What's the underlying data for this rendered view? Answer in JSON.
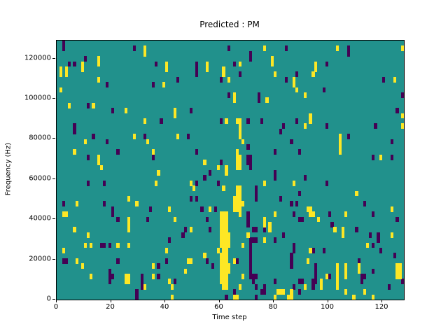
{
  "chart_data": {
    "type": "heatmap",
    "title": "Predicted : PM",
    "xlabel": "Time step",
    "ylabel": "Frequency (Hz)",
    "xlim": [
      0,
      128
    ],
    "ylim": [
      0,
      128900
    ],
    "xticks": [
      0,
      20,
      40,
      60,
      80,
      100,
      120
    ],
    "xtick_labels": [
      "0",
      "20",
      "40",
      "60",
      "80",
      "100",
      "120"
    ],
    "yticks": [
      0,
      20000,
      40000,
      60000,
      80000,
      100000,
      120000
    ],
    "ytick_labels": [
      "0",
      "20000",
      "40000",
      "60000",
      "80000",
      "100000",
      "120000"
    ],
    "grid": {
      "cols": 128,
      "rows": 50
    },
    "legend": "none",
    "colors": {
      "background": "#21918c",
      "yellow": "#fde725",
      "dark": "#440154",
      "axis": "#000000"
    },
    "yellow_cells": [
      [
        32,
        48
      ],
      [
        32,
        47
      ],
      [
        76,
        48
      ],
      [
        103,
        48
      ],
      [
        127,
        48
      ],
      [
        15,
        46
      ],
      [
        15,
        45
      ],
      [
        9,
        45
      ],
      [
        9,
        44
      ],
      [
        40,
        45
      ],
      [
        40,
        44
      ],
      [
        1,
        44
      ],
      [
        1,
        43
      ],
      [
        3,
        44
      ],
      [
        3,
        43
      ],
      [
        79,
        46
      ],
      [
        79,
        45
      ],
      [
        55,
        45
      ],
      [
        55,
        44
      ],
      [
        67,
        45
      ],
      [
        61,
        44
      ],
      [
        61,
        43
      ],
      [
        95,
        45
      ],
      [
        95,
        44
      ],
      [
        94,
        43
      ],
      [
        80,
        43
      ],
      [
        15,
        42
      ],
      [
        39,
        41
      ],
      [
        1,
        40
      ],
      [
        63,
        42
      ],
      [
        87,
        42
      ],
      [
        87,
        41
      ],
      [
        124,
        42
      ],
      [
        88,
        40
      ],
      [
        91,
        39
      ],
      [
        65,
        39
      ],
      [
        65,
        38
      ],
      [
        77,
        38
      ],
      [
        4,
        37
      ],
      [
        13,
        37
      ],
      [
        25,
        36
      ],
      [
        32,
        34
      ],
      [
        43,
        36
      ],
      [
        43,
        35
      ],
      [
        127,
        35
      ],
      [
        62,
        34
      ],
      [
        66,
        34
      ],
      [
        67,
        34
      ],
      [
        93,
        35
      ],
      [
        93,
        34
      ],
      [
        91,
        33
      ],
      [
        127,
        33
      ],
      [
        67,
        33
      ],
      [
        67,
        32
      ],
      [
        67,
        31
      ],
      [
        28,
        31
      ],
      [
        44,
        31
      ],
      [
        104,
        31
      ],
      [
        104,
        30
      ],
      [
        104,
        29
      ],
      [
        104,
        28
      ],
      [
        10,
        30
      ],
      [
        33,
        30
      ],
      [
        68,
        30
      ],
      [
        6,
        28
      ],
      [
        35,
        28
      ],
      [
        15,
        27
      ],
      [
        15,
        26
      ],
      [
        16,
        25
      ],
      [
        66,
        28
      ],
      [
        66,
        27
      ],
      [
        67,
        27
      ],
      [
        66,
        26
      ],
      [
        67,
        26
      ],
      [
        66,
        25
      ],
      [
        67,
        25
      ],
      [
        54,
        26
      ],
      [
        59,
        25
      ],
      [
        62,
        25
      ],
      [
        62,
        24
      ],
      [
        119,
        27
      ],
      [
        37,
        24
      ],
      [
        36,
        22
      ],
      [
        76,
        22
      ],
      [
        87,
        22
      ],
      [
        110,
        20
      ],
      [
        49,
        22
      ],
      [
        50,
        21
      ],
      [
        61,
        21
      ],
      [
        66,
        21
      ],
      [
        67,
        21
      ],
      [
        66,
        20
      ],
      [
        67,
        20
      ],
      [
        26,
        19
      ],
      [
        7,
        18
      ],
      [
        29,
        18
      ],
      [
        41,
        17
      ],
      [
        65,
        19
      ],
      [
        66,
        19
      ],
      [
        67,
        19
      ],
      [
        65,
        18
      ],
      [
        66,
        18
      ],
      [
        67,
        18
      ],
      [
        68,
        18
      ],
      [
        65,
        17
      ],
      [
        66,
        17
      ],
      [
        67,
        17
      ],
      [
        56,
        17
      ],
      [
        123,
        17
      ],
      [
        92,
        17
      ],
      [
        93,
        17
      ],
      [
        2,
        16
      ],
      [
        3,
        16
      ],
      [
        26,
        15
      ],
      [
        26,
        14
      ],
      [
        26,
        13
      ],
      [
        6,
        13
      ],
      [
        43,
        15
      ],
      [
        49,
        13
      ],
      [
        67,
        16
      ],
      [
        76,
        15
      ],
      [
        76,
        14
      ],
      [
        78,
        14
      ],
      [
        78,
        13
      ],
      [
        80,
        16
      ],
      [
        93,
        16
      ],
      [
        94,
        16
      ],
      [
        96,
        15
      ],
      [
        102,
        13
      ],
      [
        105,
        13
      ],
      [
        105,
        12
      ],
      [
        106,
        16
      ],
      [
        123,
        12
      ],
      [
        114,
        10
      ],
      [
        76,
        11
      ],
      [
        11,
        12
      ],
      [
        10,
        10
      ],
      [
        12,
        10
      ],
      [
        22,
        10
      ],
      [
        26,
        10
      ],
      [
        2,
        9
      ],
      [
        7,
        7
      ],
      [
        9,
        6
      ],
      [
        12,
        4
      ],
      [
        25,
        4
      ],
      [
        26,
        4
      ],
      [
        25,
        3
      ],
      [
        26,
        3
      ],
      [
        35,
        6
      ],
      [
        35,
        4
      ],
      [
        40,
        9
      ],
      [
        32,
        2
      ],
      [
        41,
        3
      ],
      [
        42,
        2
      ],
      [
        42,
        0
      ],
      [
        59,
        9
      ],
      [
        54,
        8
      ],
      [
        48,
        7
      ],
      [
        49,
        7
      ],
      [
        47,
        5
      ],
      [
        60,
        16
      ],
      [
        61,
        16
      ],
      [
        62,
        16
      ],
      [
        60,
        15
      ],
      [
        61,
        15
      ],
      [
        62,
        15
      ],
      [
        60,
        14
      ],
      [
        61,
        14
      ],
      [
        62,
        14
      ],
      [
        60,
        13
      ],
      [
        61,
        13
      ],
      [
        62,
        13
      ],
      [
        60,
        12
      ],
      [
        61,
        12
      ],
      [
        62,
        12
      ],
      [
        60,
        11
      ],
      [
        61,
        11
      ],
      [
        62,
        11
      ],
      [
        60,
        10
      ],
      [
        61,
        10
      ],
      [
        62,
        10
      ],
      [
        61,
        9
      ],
      [
        62,
        9
      ],
      [
        60,
        8
      ],
      [
        61,
        8
      ],
      [
        62,
        8
      ],
      [
        60,
        7
      ],
      [
        61,
        7
      ],
      [
        62,
        7
      ],
      [
        60,
        6
      ],
      [
        61,
        6
      ],
      [
        62,
        6
      ],
      [
        60,
        5
      ],
      [
        61,
        5
      ],
      [
        62,
        5
      ],
      [
        60,
        4
      ],
      [
        61,
        4
      ],
      [
        62,
        4
      ],
      [
        60,
        3
      ],
      [
        61,
        3
      ],
      [
        62,
        3
      ],
      [
        61,
        2
      ],
      [
        62,
        2
      ],
      [
        63,
        12
      ],
      [
        63,
        11
      ],
      [
        63,
        10
      ],
      [
        63,
        6
      ],
      [
        63,
        5
      ],
      [
        65,
        0
      ],
      [
        66,
        0
      ],
      [
        67,
        2
      ],
      [
        70,
        12
      ],
      [
        68,
        10
      ],
      [
        68,
        4
      ],
      [
        65,
        7
      ],
      [
        81,
        1
      ],
      [
        80,
        0
      ],
      [
        82,
        1
      ],
      [
        83,
        1
      ],
      [
        85,
        0
      ],
      [
        86,
        0
      ],
      [
        86,
        1
      ],
      [
        92,
        7
      ],
      [
        93,
        9
      ],
      [
        97,
        3
      ],
      [
        97,
        2
      ],
      [
        99,
        4
      ],
      [
        103,
        6
      ],
      [
        103,
        5
      ],
      [
        103,
        4
      ],
      [
        103,
        3
      ],
      [
        103,
        2
      ],
      [
        106,
        6
      ],
      [
        106,
        5
      ],
      [
        106,
        4
      ],
      [
        106,
        1
      ],
      [
        111,
        6
      ],
      [
        111,
        5
      ],
      [
        113,
        1
      ],
      [
        125,
        6
      ],
      [
        126,
        6
      ],
      [
        125,
        5
      ],
      [
        126,
        5
      ],
      [
        125,
        4
      ],
      [
        126,
        4
      ],
      [
        109,
        0
      ],
      [
        116,
        0
      ],
      [
        91,
        2
      ]
    ],
    "dark_cells": [
      [
        2,
        49
      ],
      [
        2,
        48
      ],
      [
        28,
        48
      ],
      [
        63,
        48
      ],
      [
        84,
        48
      ],
      [
        107,
        48
      ],
      [
        107,
        47
      ],
      [
        10,
        46
      ],
      [
        4,
        45
      ],
      [
        6,
        45
      ],
      [
        36,
        45
      ],
      [
        71,
        47
      ],
      [
        71,
        46
      ],
      [
        51,
        45
      ],
      [
        51,
        44
      ],
      [
        51,
        43
      ],
      [
        65,
        45
      ],
      [
        67,
        43
      ],
      [
        99,
        45
      ],
      [
        88,
        43
      ],
      [
        18,
        41
      ],
      [
        35,
        41
      ],
      [
        60,
        42
      ],
      [
        44,
        42
      ],
      [
        84,
        42
      ],
      [
        120,
        42
      ],
      [
        98,
        40
      ],
      [
        127,
        39
      ],
      [
        63,
        39
      ],
      [
        74,
        39
      ],
      [
        74,
        38
      ],
      [
        11,
        37
      ],
      [
        20,
        36
      ],
      [
        38,
        34
      ],
      [
        49,
        36
      ],
      [
        125,
        36
      ],
      [
        60,
        34
      ],
      [
        70,
        34
      ],
      [
        75,
        34
      ],
      [
        88,
        34
      ],
      [
        117,
        33
      ],
      [
        6,
        33
      ],
      [
        6,
        32
      ],
      [
        99,
        33
      ],
      [
        83,
        33
      ],
      [
        82,
        32
      ],
      [
        13,
        31
      ],
      [
        32,
        31
      ],
      [
        48,
        31
      ],
      [
        107,
        31
      ],
      [
        18,
        30
      ],
      [
        86,
        30
      ],
      [
        123,
        30
      ],
      [
        70,
        29
      ],
      [
        22,
        28
      ],
      [
        35,
        27
      ],
      [
        51,
        28
      ],
      [
        80,
        28
      ],
      [
        89,
        28
      ],
      [
        11,
        27
      ],
      [
        70,
        27
      ],
      [
        71,
        27
      ],
      [
        70,
        26
      ],
      [
        71,
        26
      ],
      [
        71,
        25
      ],
      [
        60,
        26
      ],
      [
        56,
        24
      ],
      [
        54,
        23
      ],
      [
        116,
        27
      ],
      [
        123,
        27
      ],
      [
        11,
        22
      ],
      [
        17,
        22
      ],
      [
        80,
        24
      ],
      [
        80,
        23
      ],
      [
        89,
        20
      ],
      [
        91,
        23
      ],
      [
        99,
        22
      ],
      [
        51,
        22
      ],
      [
        59,
        22
      ],
      [
        73,
        21
      ],
      [
        73,
        20
      ],
      [
        73,
        19
      ],
      [
        2,
        18
      ],
      [
        17,
        18
      ],
      [
        20,
        17
      ],
      [
        34,
        17
      ],
      [
        49,
        19
      ],
      [
        51,
        19
      ],
      [
        82,
        19
      ],
      [
        86,
        18
      ],
      [
        88,
        18
      ],
      [
        113,
        18
      ],
      [
        58,
        17
      ],
      [
        53,
        17
      ],
      [
        20,
        16
      ],
      [
        22,
        15
      ],
      [
        33,
        15
      ],
      [
        47,
        13
      ],
      [
        46,
        12
      ],
      [
        55,
        15
      ],
      [
        56,
        13
      ],
      [
        70,
        16
      ],
      [
        70,
        15
      ],
      [
        70,
        14
      ],
      [
        72,
        13
      ],
      [
        73,
        13
      ],
      [
        87,
        16
      ],
      [
        89,
        15
      ],
      [
        90,
        15
      ],
      [
        100,
        16
      ],
      [
        101,
        14
      ],
      [
        110,
        13
      ],
      [
        116,
        16
      ],
      [
        125,
        15
      ],
      [
        115,
        12
      ],
      [
        118,
        12
      ],
      [
        118,
        11
      ],
      [
        83,
        12
      ],
      [
        116,
        10
      ],
      [
        16,
        10
      ],
      [
        17,
        10
      ],
      [
        19,
        10
      ],
      [
        2,
        7
      ],
      [
        3,
        7
      ],
      [
        19,
        5
      ],
      [
        19,
        4
      ],
      [
        20,
        4
      ],
      [
        19,
        3
      ],
      [
        22,
        7
      ],
      [
        31,
        4
      ],
      [
        31,
        3
      ],
      [
        31,
        2
      ],
      [
        37,
        6
      ],
      [
        37,
        4
      ],
      [
        40,
        7
      ],
      [
        41,
        11
      ],
      [
        29,
        1
      ],
      [
        29,
        0
      ],
      [
        43,
        3
      ],
      [
        55,
        7
      ],
      [
        57,
        6
      ],
      [
        62,
        0
      ],
      [
        65,
        1
      ],
      [
        66,
        7
      ],
      [
        71,
        11
      ],
      [
        71,
        10
      ],
      [
        71,
        9
      ],
      [
        71,
        8
      ],
      [
        71,
        7
      ],
      [
        71,
        6
      ],
      [
        71,
        5
      ],
      [
        71,
        4
      ],
      [
        72,
        11
      ],
      [
        73,
        11
      ],
      [
        72,
        4
      ],
      [
        73,
        4
      ],
      [
        72,
        3
      ],
      [
        73,
        2
      ],
      [
        73,
        0
      ],
      [
        75,
        1
      ],
      [
        76,
        1
      ],
      [
        76,
        2
      ],
      [
        76,
        13
      ],
      [
        80,
        11
      ],
      [
        80,
        3
      ],
      [
        86,
        8
      ],
      [
        86,
        7
      ],
      [
        86,
        6
      ],
      [
        87,
        10
      ],
      [
        87,
        9
      ],
      [
        94,
        9
      ],
      [
        98,
        9
      ],
      [
        95,
        6
      ],
      [
        95,
        5
      ],
      [
        95,
        4
      ],
      [
        94,
        3
      ],
      [
        95,
        3
      ],
      [
        94,
        2
      ],
      [
        100,
        4
      ],
      [
        111,
        7
      ],
      [
        112,
        4
      ],
      [
        113,
        4
      ],
      [
        112,
        3
      ],
      [
        116,
        5
      ],
      [
        119,
        9
      ],
      [
        122,
        2
      ],
      [
        124,
        8
      ],
      [
        127,
        3
      ],
      [
        89,
        3
      ],
      [
        90,
        3
      ],
      [
        87,
        2
      ],
      [
        89,
        1
      ]
    ]
  }
}
